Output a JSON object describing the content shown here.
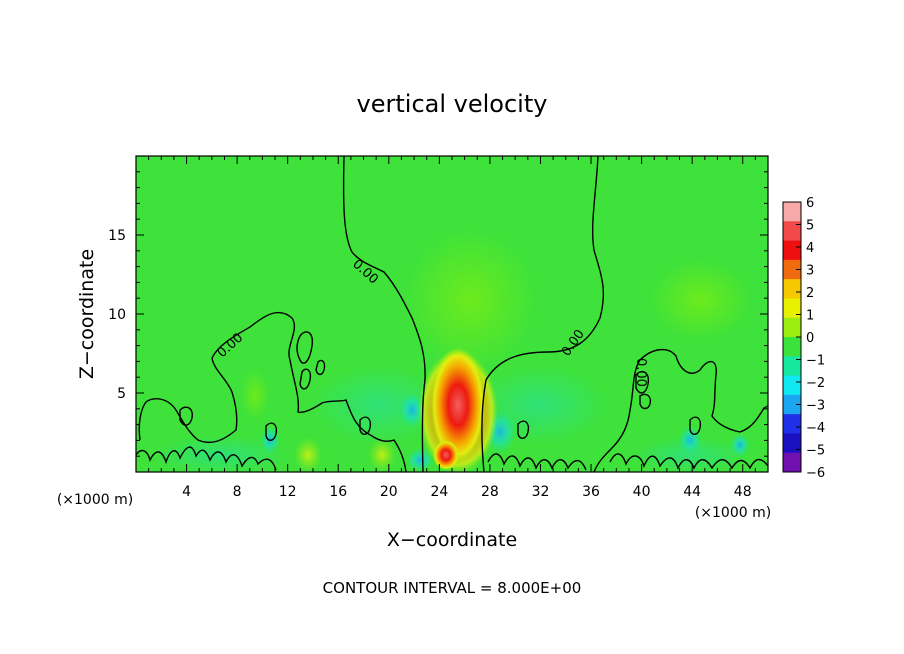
{
  "chart_data": {
    "type": "heatmap",
    "title": "vertical velocity",
    "xlabel": "X−coordinate",
    "ylabel": "Z−coordinate",
    "x_unit": "(×1000 m)",
    "xlim": [
      0,
      50
    ],
    "ylim": [
      0,
      20
    ],
    "x_ticks": [
      4,
      8,
      12,
      16,
      20,
      24,
      28,
      32,
      36,
      40,
      44,
      48
    ],
    "y_ticks": [
      5,
      10,
      15
    ],
    "contour_interval_text": "CONTOUR INTERVAL =  8.000E+00",
    "contour_labels": [
      "0.00",
      "0.00",
      "0.00",
      "0.00"
    ],
    "colorbar": {
      "ticks": [
        6,
        5,
        4,
        3,
        2,
        1,
        0,
        -1,
        -2,
        -3,
        -4,
        -5,
        -6
      ],
      "tick_labels": [
        "6",
        "5",
        "4",
        "3",
        "2",
        "1",
        "0",
        "−1",
        "−2",
        "−3",
        "−4",
        "−5",
        "−6"
      ],
      "colors": [
        "#f7a8a8",
        "#f24a4a",
        "#ee1010",
        "#f06a10",
        "#f5c800",
        "#e6f000",
        "#9cee10",
        "#3ce23c",
        "#16e8a0",
        "#10e8f0",
        "#1aa6f0",
        "#2030e8",
        "#1a10c0",
        "#7010b0"
      ]
    },
    "background_value_color": "#3fe23a"
  }
}
